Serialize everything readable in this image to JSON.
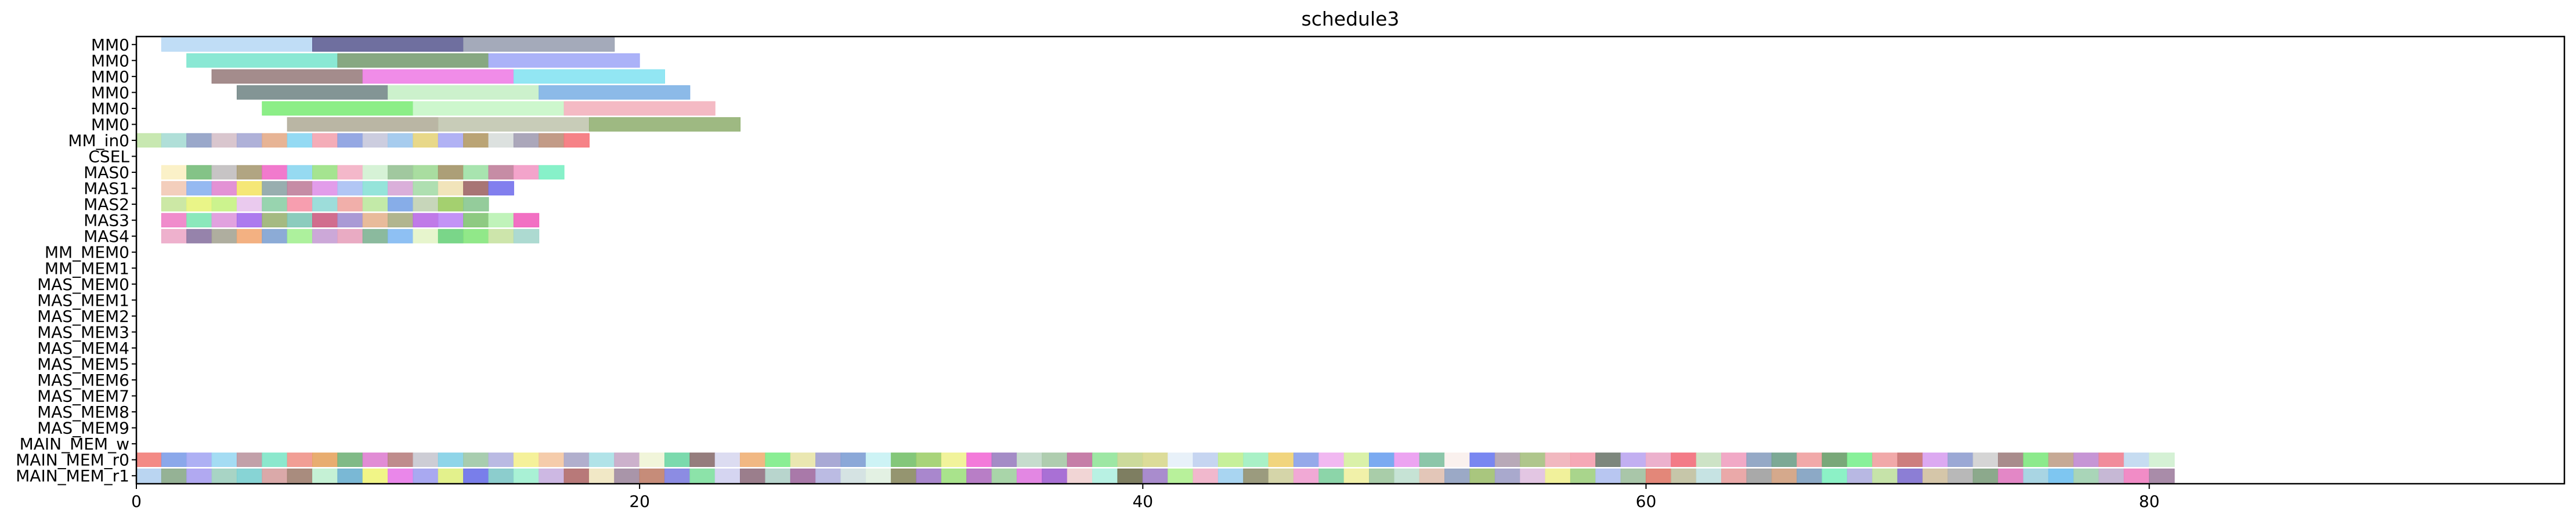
{
  "chart_data": {
    "type": "gantt",
    "title": "schedule3",
    "xlabel": "",
    "ylabel": "",
    "xlim": [
      0,
      96.5
    ],
    "x_ticks": [
      0,
      20,
      40,
      60,
      80
    ],
    "x_tick_labels": [
      "0",
      "20",
      "40",
      "60",
      "80"
    ],
    "grid": false,
    "legend": "none",
    "rows": [
      "MM0",
      "MM0",
      "MM0",
      "MM0",
      "MM0",
      "MM0",
      "MM_in0",
      "CSEL",
      "MAS0",
      "MAS1",
      "MAS2",
      "MAS3",
      "MAS4",
      "MM_MEM0",
      "MM_MEM1",
      "MAS_MEM0",
      "MAS_MEM1",
      "MAS_MEM2",
      "MAS_MEM3",
      "MAS_MEM4",
      "MAS_MEM5",
      "MAS_MEM6",
      "MAS_MEM7",
      "MAS_MEM8",
      "MAS_MEM9",
      "MAIN_MEM_w",
      "MAIN_MEM_r0",
      "MAIN_MEM_r1"
    ],
    "tasks": [
      {
        "row": 0,
        "start": 1,
        "end": 7,
        "color": "#b9d9f5"
      },
      {
        "row": 0,
        "start": 7,
        "end": 13,
        "color": "#5f5f95"
      },
      {
        "row": 0,
        "start": 13,
        "end": 19,
        "color": "#9aa1b3"
      },
      {
        "row": 1,
        "start": 2,
        "end": 8,
        "color": "#7de6cf"
      },
      {
        "row": 1,
        "start": 8,
        "end": 14,
        "color": "#7a9e74"
      },
      {
        "row": 1,
        "start": 14,
        "end": 20,
        "color": "#a2aaf7"
      },
      {
        "row": 2,
        "start": 3,
        "end": 9,
        "color": "#9a8080"
      },
      {
        "row": 2,
        "start": 9,
        "end": 15,
        "color": "#ee7fe6"
      },
      {
        "row": 2,
        "start": 15,
        "end": 21,
        "color": "#86e3f2"
      },
      {
        "row": 3,
        "start": 4,
        "end": 10,
        "color": "#768a8a"
      },
      {
        "row": 3,
        "start": 10,
        "end": 16,
        "color": "#c6f0c6"
      },
      {
        "row": 3,
        "start": 16,
        "end": 22,
        "color": "#7fb2e6"
      },
      {
        "row": 4,
        "start": 5,
        "end": 11,
        "color": "#7fec7a"
      },
      {
        "row": 4,
        "start": 11,
        "end": 17,
        "color": "#c8f6c8"
      },
      {
        "row": 4,
        "start": 17,
        "end": 23,
        "color": "#f3b3be"
      },
      {
        "row": 5,
        "start": 6,
        "end": 12,
        "color": "#b3ae9a"
      },
      {
        "row": 5,
        "start": 12,
        "end": 18,
        "color": "#c2c7b0"
      },
      {
        "row": 5,
        "start": 18,
        "end": 24,
        "color": "#93b174"
      }
    ],
    "cell_rows": [
      {
        "row": 6,
        "start": 0,
        "colors": [
          "#c2e6a8",
          "#a7dbd4",
          "#8f9ec4",
          "#d5c0c9",
          "#a6a8d4",
          "#e4ac8a",
          "#88d6f2",
          "#f3a4b0",
          "#8a9ee0",
          "#c6c8dc",
          "#9dc7ec",
          "#e6d47c",
          "#a8aaf3",
          "#b39a66",
          "#d8dedc",
          "#a29db3",
          "#bb907a",
          "#f5747a"
        ]
      },
      {
        "row": 8,
        "start": 1,
        "colors": [
          "#fbf0c2",
          "#77bd7a",
          "#c1bebf",
          "#a89b74",
          "#f06bc8",
          "#8bd6f0",
          "#9be184",
          "#f3b0c4",
          "#d1f1d1",
          "#97c295",
          "#a0d996",
          "#a39568",
          "#9ee1a6",
          "#c07f9b",
          "#f29ac5",
          "#7af0c3"
        ]
      },
      {
        "row": 9,
        "start": 1,
        "colors": [
          "#f2c9b5",
          "#8ab1ef",
          "#e086d0",
          "#f4e468",
          "#8da5a6",
          "#c07f9b",
          "#df92e8",
          "#a8c0f3",
          "#89e1d6",
          "#d6a6d6",
          "#a6dca8",
          "#f0e1b3",
          "#9e6666",
          "#7471ec"
        ]
      },
      {
        "row": 10,
        "start": 1,
        "colors": [
          "#c7e69b",
          "#e8f47b",
          "#c6f282",
          "#e8c4ec",
          "#8dcfa6",
          "#f693a6",
          "#92d9d6",
          "#f0a6a1",
          "#bce89f",
          "#7aa4e6",
          "#c1d2b3",
          "#9acb5f",
          "#88c790"
        ]
      },
      {
        "row": 11,
        "start": 1,
        "colors": [
          "#ee7fc7",
          "#7ee6b4",
          "#de98db",
          "#a46cec",
          "#9bb274",
          "#7fc6b6",
          "#cc5d82",
          "#a18fd0",
          "#e6b490",
          "#a9ad83",
          "#b96be5",
          "#bc87f5",
          "#82c474",
          "#b9f2b2",
          "#f160bd"
        ]
      },
      {
        "row": 12,
        "start": 1,
        "colors": [
          "#eca8c8",
          "#8b76a2",
          "#a6a595",
          "#f2a874",
          "#7fa2d2",
          "#a4f092",
          "#c69fd4",
          "#e7a2bc",
          "#7eb393",
          "#82b9f2",
          "#e4f4c8",
          "#6cd17c",
          "#85e67c",
          "#c8e2a2",
          "#a4d6cc"
        ]
      },
      {
        "row": 26,
        "start": 0,
        "colors": [
          "#f27d78",
          "#7e9ee8",
          "#a5a7f3",
          "#9ad8f2",
          "#bb96a0",
          "#7fe6c8",
          "#f0948a",
          "#e6a460",
          "#72b37a",
          "#de7fd0",
          "#b87f7f",
          "#c8c8d0",
          "#83d0e6",
          "#9ec8a6",
          "#b3b3e0",
          "#f4f08f",
          "#f4c6a2",
          "#a8a6c8",
          "#a8e0e6",
          "#c6a8c6",
          "#f0f4d6",
          "#6dd6a4",
          "#8a6f6f",
          "#d8d8f0",
          "#f0b076",
          "#7dec88",
          "#e8e4a8",
          "#a0a0d0",
          "#7e9ed4",
          "#c8f2f4",
          "#77c16b",
          "#9fcf6b",
          "#f0f290",
          "#f26bd6",
          "#9a7fc0",
          "#c0d8c8",
          "#a6c8a6",
          "#c0709e",
          "#92e49a",
          "#c6d690",
          "#d8d88e",
          "#e6f0f8",
          "#c0d0f0",
          "#c0ee90",
          "#a0f0c0",
          "#f0d070",
          "#8aa0e8",
          "#f0b0f0",
          "#d6f0a0",
          "#6da1f0",
          "#ea9af0",
          "#7fc0a0",
          "#faf0ec",
          "#6a7af0",
          "#b0a0b0",
          "#a6c080",
          "#f0b0b8",
          "#f49fae",
          "#6f7a6f",
          "#bba6f0",
          "#eaa8c8",
          "#f26d7a",
          "#c8e0c0",
          "#f0a0c0",
          "#8aa0c0",
          "#6fa08a",
          "#f0a0a0",
          "#6a9e6a",
          "#7bf08f",
          "#f0a0a0",
          "#c87070",
          "#d8a0f0",
          "#909fd0",
          "#d0d0d0",
          "#a08080",
          "#7fe87f",
          "#c0a08a",
          "#c08ad0",
          "#f08090",
          "#c0d8f0",
          "#d0f0d0"
        ]
      },
      {
        "row": 27,
        "start": 0,
        "colors": [
          "#b3d0f0",
          "#8aaa8a",
          "#a9a0f0",
          "#9fcfbf",
          "#7acfd0",
          "#d6a0a0",
          "#a08070",
          "#bff0d0",
          "#6bb0d0",
          "#f0f47a",
          "#e87ae8",
          "#a0a0f0",
          "#e0f080",
          "#6a70e8",
          "#80c8c8",
          "#a0f0d0",
          "#c8b0e0",
          "#b06a6a",
          "#f0e6c0",
          "#a08aa0",
          "#c0806a",
          "#8080e0",
          "#80e0a0",
          "#d0d0f0",
          "#907080",
          "#b0d0c8",
          "#a06aa0",
          "#b4b4e0",
          "#d0e0e0",
          "#e0f0e0",
          "#8a8a60",
          "#a07ac8",
          "#a0e080",
          "#b070c0",
          "#a0d0a0",
          "#e07ae0",
          "#a060d0",
          "#f0d0d0",
          "#b0f0e0",
          "#707050",
          "#a080c8",
          "#b0f090",
          "#f0b0c8",
          "#a0d0f0",
          "#909070",
          "#d0d0a0",
          "#f0a0d0",
          "#80d0a0",
          "#f0f0a0",
          "#a0c8a0",
          "#c0e0d0",
          "#e0c0b0",
          "#90a0c0",
          "#a0c070",
          "#a0a0c8",
          "#e0c0e0",
          "#f0f090",
          "#a0d080",
          "#b0c0f0",
          "#a0c0a0",
          "#e07a6a",
          "#c0c0a0",
          "#c0e0e0",
          "#e8a0a0",
          "#a0a0a0",
          "#d0a080",
          "#80a0c0",
          "#80f0c0",
          "#b0b0e0",
          "#c0e0a0",
          "#8070d0",
          "#d0c0a0",
          "#b0b0b0",
          "#80a080",
          "#e07ac0",
          "#a0d0e0",
          "#70c0f0",
          "#a0d0b0",
          "#c0b0d0",
          "#f080c0",
          "#a080a0"
        ]
      }
    ]
  }
}
